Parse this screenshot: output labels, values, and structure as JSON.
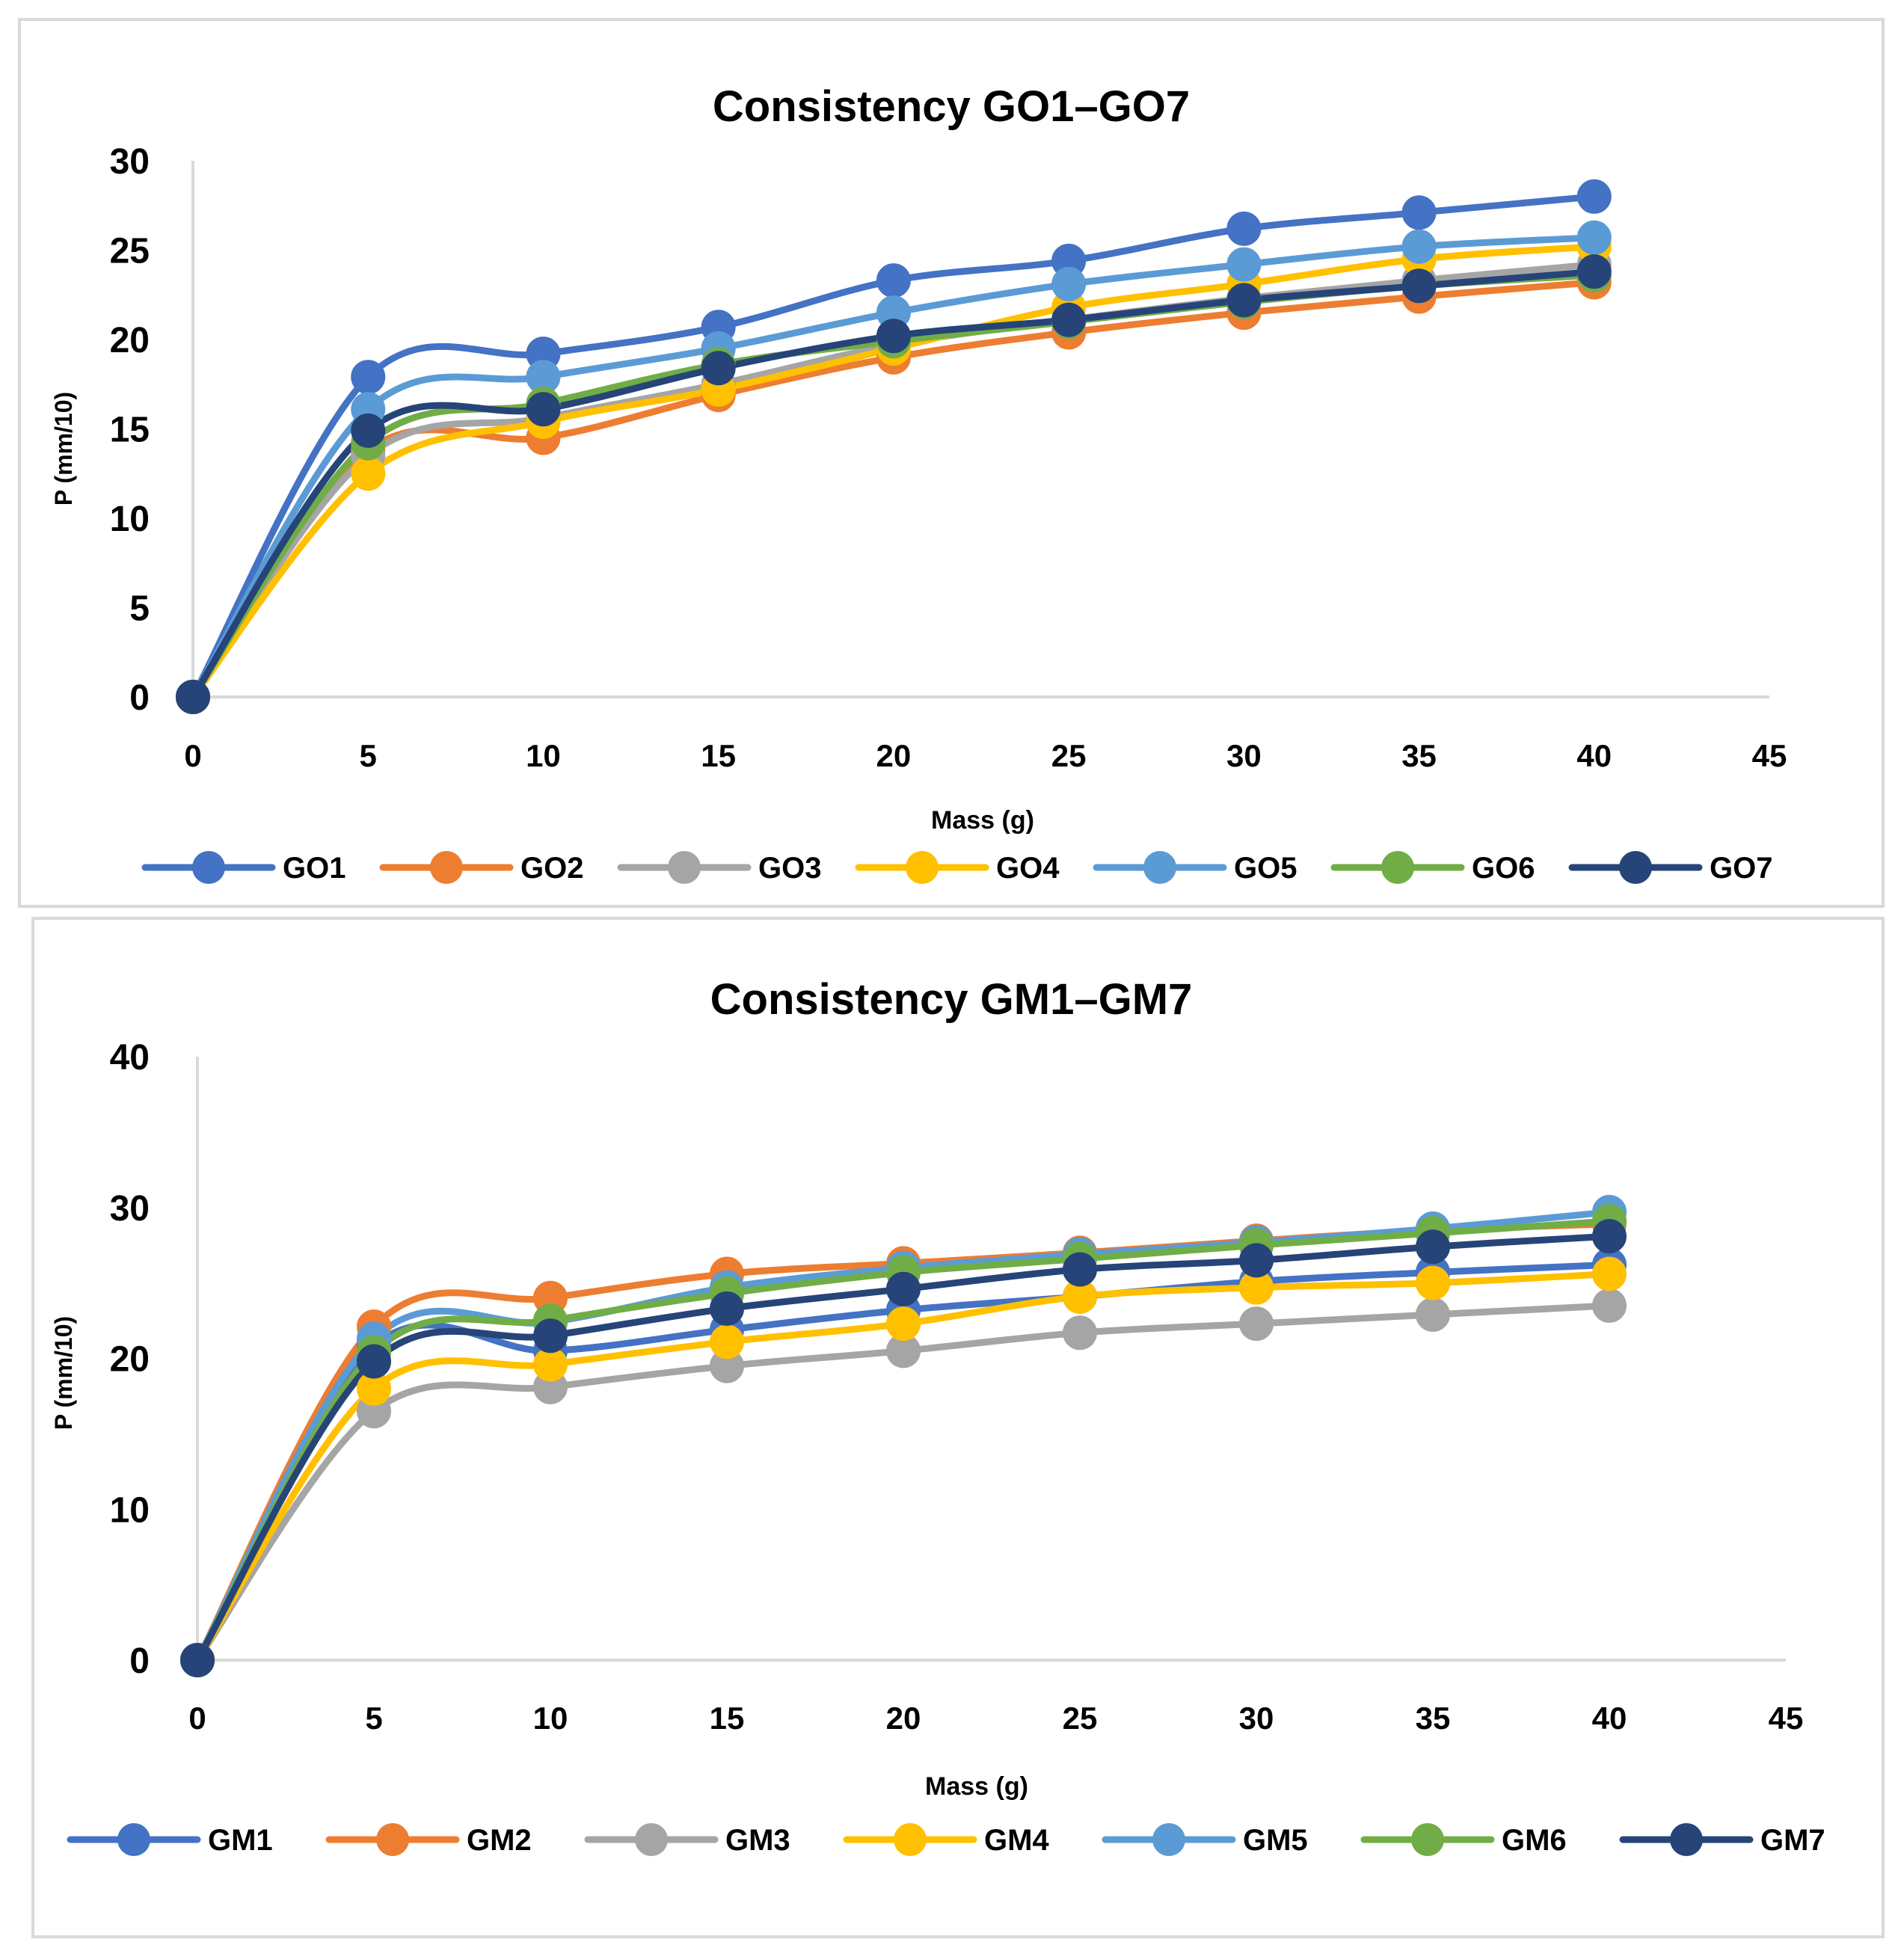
{
  "chart_data": [
    {
      "type": "line",
      "smooth": true,
      "title": "Consistency GO1–GO7",
      "xlabel": "Mass (g)",
      "ylabel": "P (mm/10)",
      "x": [
        0,
        5,
        10,
        15,
        20,
        25,
        30,
        35,
        40
      ],
      "xticks": [
        0,
        5,
        10,
        15,
        20,
        25,
        30,
        35,
        40,
        45
      ],
      "yticks": [
        0,
        5,
        10,
        15,
        20,
        25,
        30
      ],
      "xlim": [
        0,
        45
      ],
      "ylim": [
        0,
        30
      ],
      "grid": false,
      "legend": "bottom",
      "series": [
        {
          "name": "GO1",
          "color": "#4472C4",
          "values": [
            0,
            17.9,
            19.2,
            20.7,
            23.3,
            24.4,
            26.2,
            27.1,
            28.0
          ]
        },
        {
          "name": "GO2",
          "color": "#ED7D31",
          "values": [
            0,
            13.8,
            14.5,
            16.9,
            19.0,
            20.4,
            21.5,
            22.4,
            23.2
          ]
        },
        {
          "name": "GO3",
          "color": "#A5A5A5",
          "values": [
            0,
            13.5,
            15.6,
            17.5,
            19.7,
            21.1,
            22.3,
            23.3,
            24.2
          ]
        },
        {
          "name": "GO4",
          "color": "#FFC000",
          "values": [
            0,
            12.5,
            15.4,
            17.2,
            19.5,
            21.8,
            23.1,
            24.5,
            25.2
          ]
        },
        {
          "name": "GO5",
          "color": "#5B9BD5",
          "values": [
            0,
            16.1,
            17.9,
            19.5,
            21.5,
            23.1,
            24.2,
            25.2,
            25.7
          ]
        },
        {
          "name": "GO6",
          "color": "#70AD47",
          "values": [
            0,
            14.2,
            16.4,
            18.6,
            19.9,
            21.0,
            22.1,
            23.0,
            23.6
          ]
        },
        {
          "name": "GO7",
          "color": "#264478",
          "values": [
            0,
            14.9,
            16.1,
            18.4,
            20.2,
            21.1,
            22.2,
            23.0,
            23.8
          ]
        }
      ]
    },
    {
      "type": "line",
      "smooth": true,
      "title": "Consistency GM1–GM7",
      "xlabel": "Mass (g)",
      "ylabel": "P (mm/10)",
      "x": [
        0,
        5,
        10,
        15,
        20,
        25,
        30,
        35,
        40
      ],
      "xticks": [
        0,
        5,
        10,
        15,
        20,
        25,
        30,
        35,
        40,
        45
      ],
      "yticks": [
        0,
        10,
        20,
        30,
        40
      ],
      "xlim": [
        0,
        45
      ],
      "ylim": [
        0,
        40
      ],
      "grid": false,
      "legend": "bottom",
      "series": [
        {
          "name": "GM1",
          "color": "#4472C4",
          "values": [
            0,
            20.8,
            20.5,
            21.9,
            23.2,
            24.1,
            25.1,
            25.7,
            26.2
          ]
        },
        {
          "name": "GM2",
          "color": "#ED7D31",
          "values": [
            0,
            22.1,
            24.0,
            25.6,
            26.3,
            27.0,
            27.8,
            28.5,
            28.9
          ]
        },
        {
          "name": "GM3",
          "color": "#A5A5A5",
          "values": [
            0,
            16.5,
            18.1,
            19.5,
            20.5,
            21.7,
            22.3,
            22.9,
            23.5
          ]
        },
        {
          "name": "GM4",
          "color": "#FFC000",
          "values": [
            0,
            18.0,
            19.6,
            21.1,
            22.3,
            24.1,
            24.7,
            25.0,
            25.6
          ]
        },
        {
          "name": "GM5",
          "color": "#5B9BD5",
          "values": [
            0,
            21.3,
            22.4,
            24.7,
            26.0,
            26.9,
            27.7,
            28.6,
            29.7
          ]
        },
        {
          "name": "GM6",
          "color": "#70AD47",
          "values": [
            0,
            20.4,
            22.5,
            24.3,
            25.7,
            26.6,
            27.5,
            28.3,
            29.1
          ]
        },
        {
          "name": "GM7",
          "color": "#264478",
          "values": [
            0,
            19.8,
            21.5,
            23.3,
            24.6,
            25.9,
            26.5,
            27.4,
            28.1
          ]
        }
      ]
    }
  ]
}
